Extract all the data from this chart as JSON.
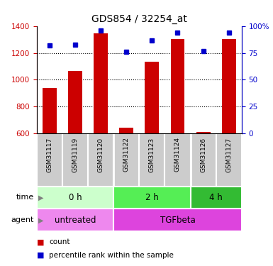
{
  "title": "GDS854 / 32254_at",
  "samples": [
    "GSM31117",
    "GSM31119",
    "GSM31120",
    "GSM31122",
    "GSM31123",
    "GSM31124",
    "GSM31126",
    "GSM31127"
  ],
  "counts": [
    940,
    1065,
    1350,
    638,
    1135,
    1305,
    608,
    1305
  ],
  "percentiles": [
    82,
    83,
    96,
    76,
    87,
    94,
    77,
    94
  ],
  "ylim_left": [
    600,
    1400
  ],
  "ylim_right": [
    0,
    100
  ],
  "bar_color": "#cc0000",
  "dot_color": "#0000cc",
  "left_tick_color": "#cc0000",
  "right_tick_color": "#0000cc",
  "time_groups": [
    {
      "label": "0 h",
      "start": 0,
      "end": 3,
      "color": "#ccffcc"
    },
    {
      "label": "2 h",
      "start": 3,
      "end": 6,
      "color": "#55ee55"
    },
    {
      "label": "4 h",
      "start": 6,
      "end": 8,
      "color": "#33bb33"
    }
  ],
  "agent_groups": [
    {
      "label": "untreated",
      "start": 0,
      "end": 3,
      "color": "#ee88ee"
    },
    {
      "label": "TGFbeta",
      "start": 3,
      "end": 8,
      "color": "#dd44dd"
    }
  ],
  "sample_box_color": "#cccccc",
  "legend_items": [
    {
      "color": "#cc0000",
      "label": "count"
    },
    {
      "color": "#0000cc",
      "label": "percentile rank within the sample"
    }
  ]
}
